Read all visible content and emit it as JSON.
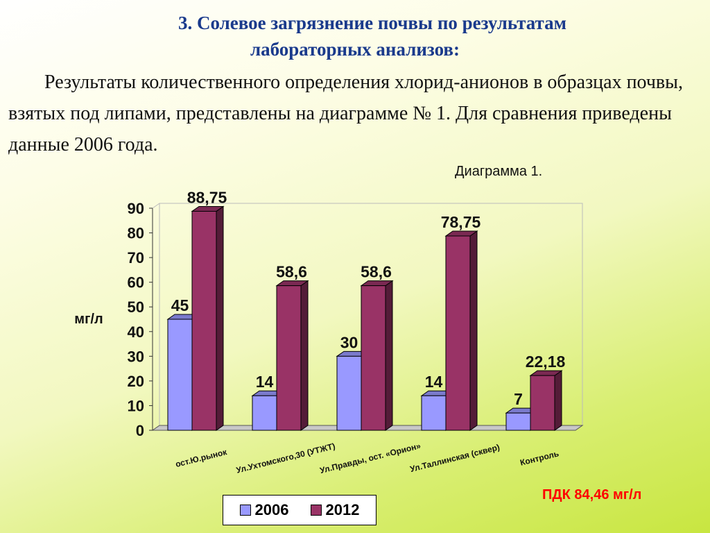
{
  "heading": {
    "line1": "3. Солевое загрязнение почвы  по  результатам",
    "line2": "лабораторных анализов:"
  },
  "intro_text": "Результаты количественного определения хлорид-анионов в образцах почвы, взятых под  липами, представлены на диаграмме № 1.  Для сравнения приведены данные 2006 года.",
  "diagram_caption": "Диаграмма 1.",
  "pdk_note": "ПДК 84,46 мг/л",
  "colors": {
    "s2006": "#9999ff",
    "s2012": "#993366",
    "title": "#1a3a8c",
    "pdk": "#ff0000"
  },
  "chart_data": {
    "type": "bar",
    "title": "",
    "xlabel": "",
    "ylabel": "мг/л",
    "ylim": [
      0,
      90
    ],
    "yticks": [
      "0",
      "10",
      "20",
      "30",
      "40",
      "50",
      "60",
      "70",
      "80",
      "90"
    ],
    "grid": false,
    "legend_position": "bottom",
    "categories": [
      "ост.Ю.рынок",
      "Ул.Ухтомского,30 (УТЖТ)",
      "Ул.Правды, ост. «Орион»",
      "Ул.Таллинская (сквер)",
      "Контроль"
    ],
    "series": [
      {
        "name": "2006",
        "values": [
          45,
          14,
          30,
          14,
          7
        ],
        "labels": [
          "45",
          "14",
          "30",
          "14",
          "7"
        ]
      },
      {
        "name": "2012",
        "values": [
          88.75,
          58.6,
          58.6,
          78.75,
          22.18
        ],
        "labels": [
          "88,75",
          "58,6",
          "58,6",
          "78,75",
          "22,18"
        ]
      }
    ]
  }
}
